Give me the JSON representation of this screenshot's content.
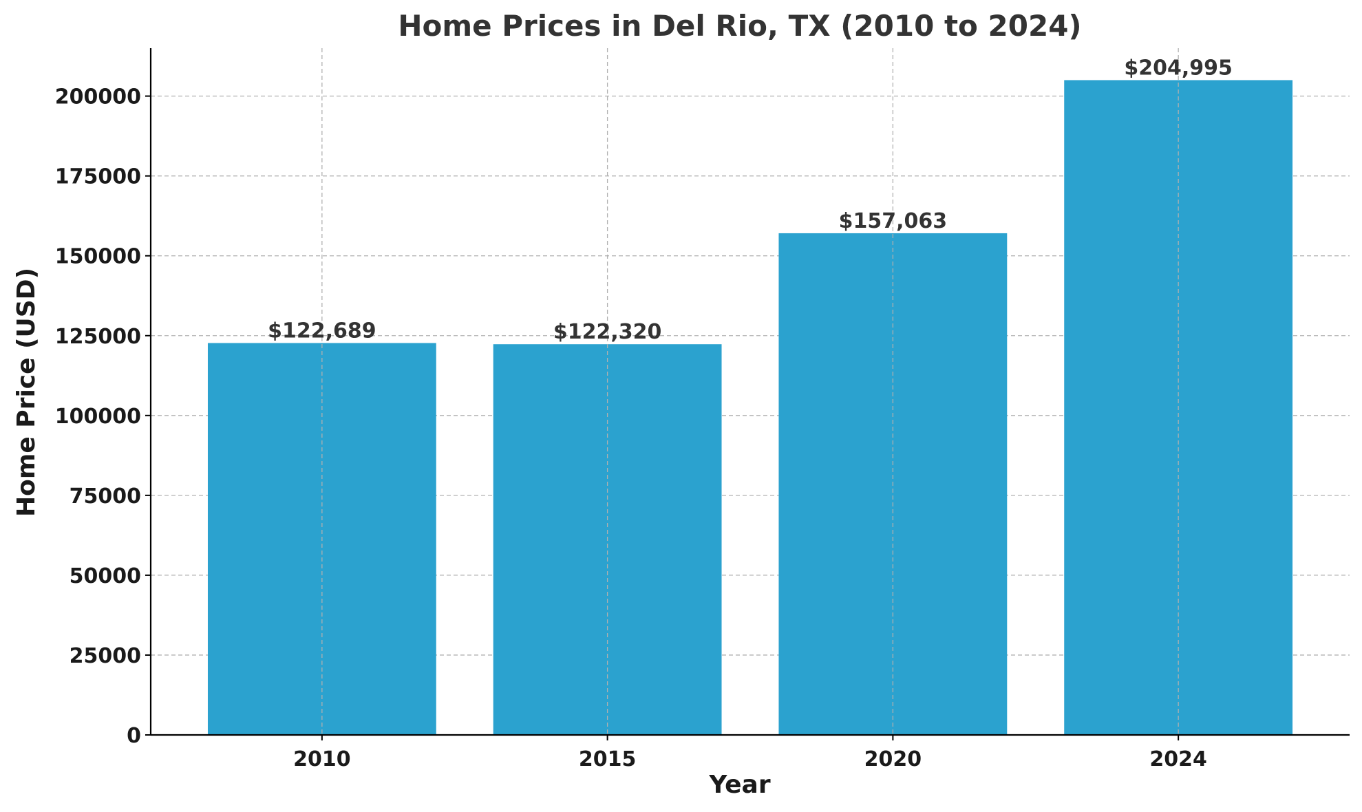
{
  "chart_data": {
    "type": "bar",
    "title": "Home Prices in Del Rio, TX (2010 to 2024)",
    "xlabel": "Year",
    "ylabel": "Home Price (USD)",
    "categories": [
      "2010",
      "2015",
      "2020",
      "2024"
    ],
    "values": [
      122689,
      122320,
      157063,
      204995
    ],
    "data_labels": [
      "$122,689",
      "$122,320",
      "$157,063",
      "$204,995"
    ],
    "ylim": [
      0,
      215000
    ],
    "yticks": [
      0,
      25000,
      50000,
      75000,
      100000,
      125000,
      150000,
      175000,
      200000
    ],
    "ytick_labels": [
      "0",
      "25000",
      "50000",
      "75000",
      "100000",
      "125000",
      "150000",
      "175000",
      "200000"
    ],
    "grid": true,
    "bar_color": "#2ba2cf"
  }
}
